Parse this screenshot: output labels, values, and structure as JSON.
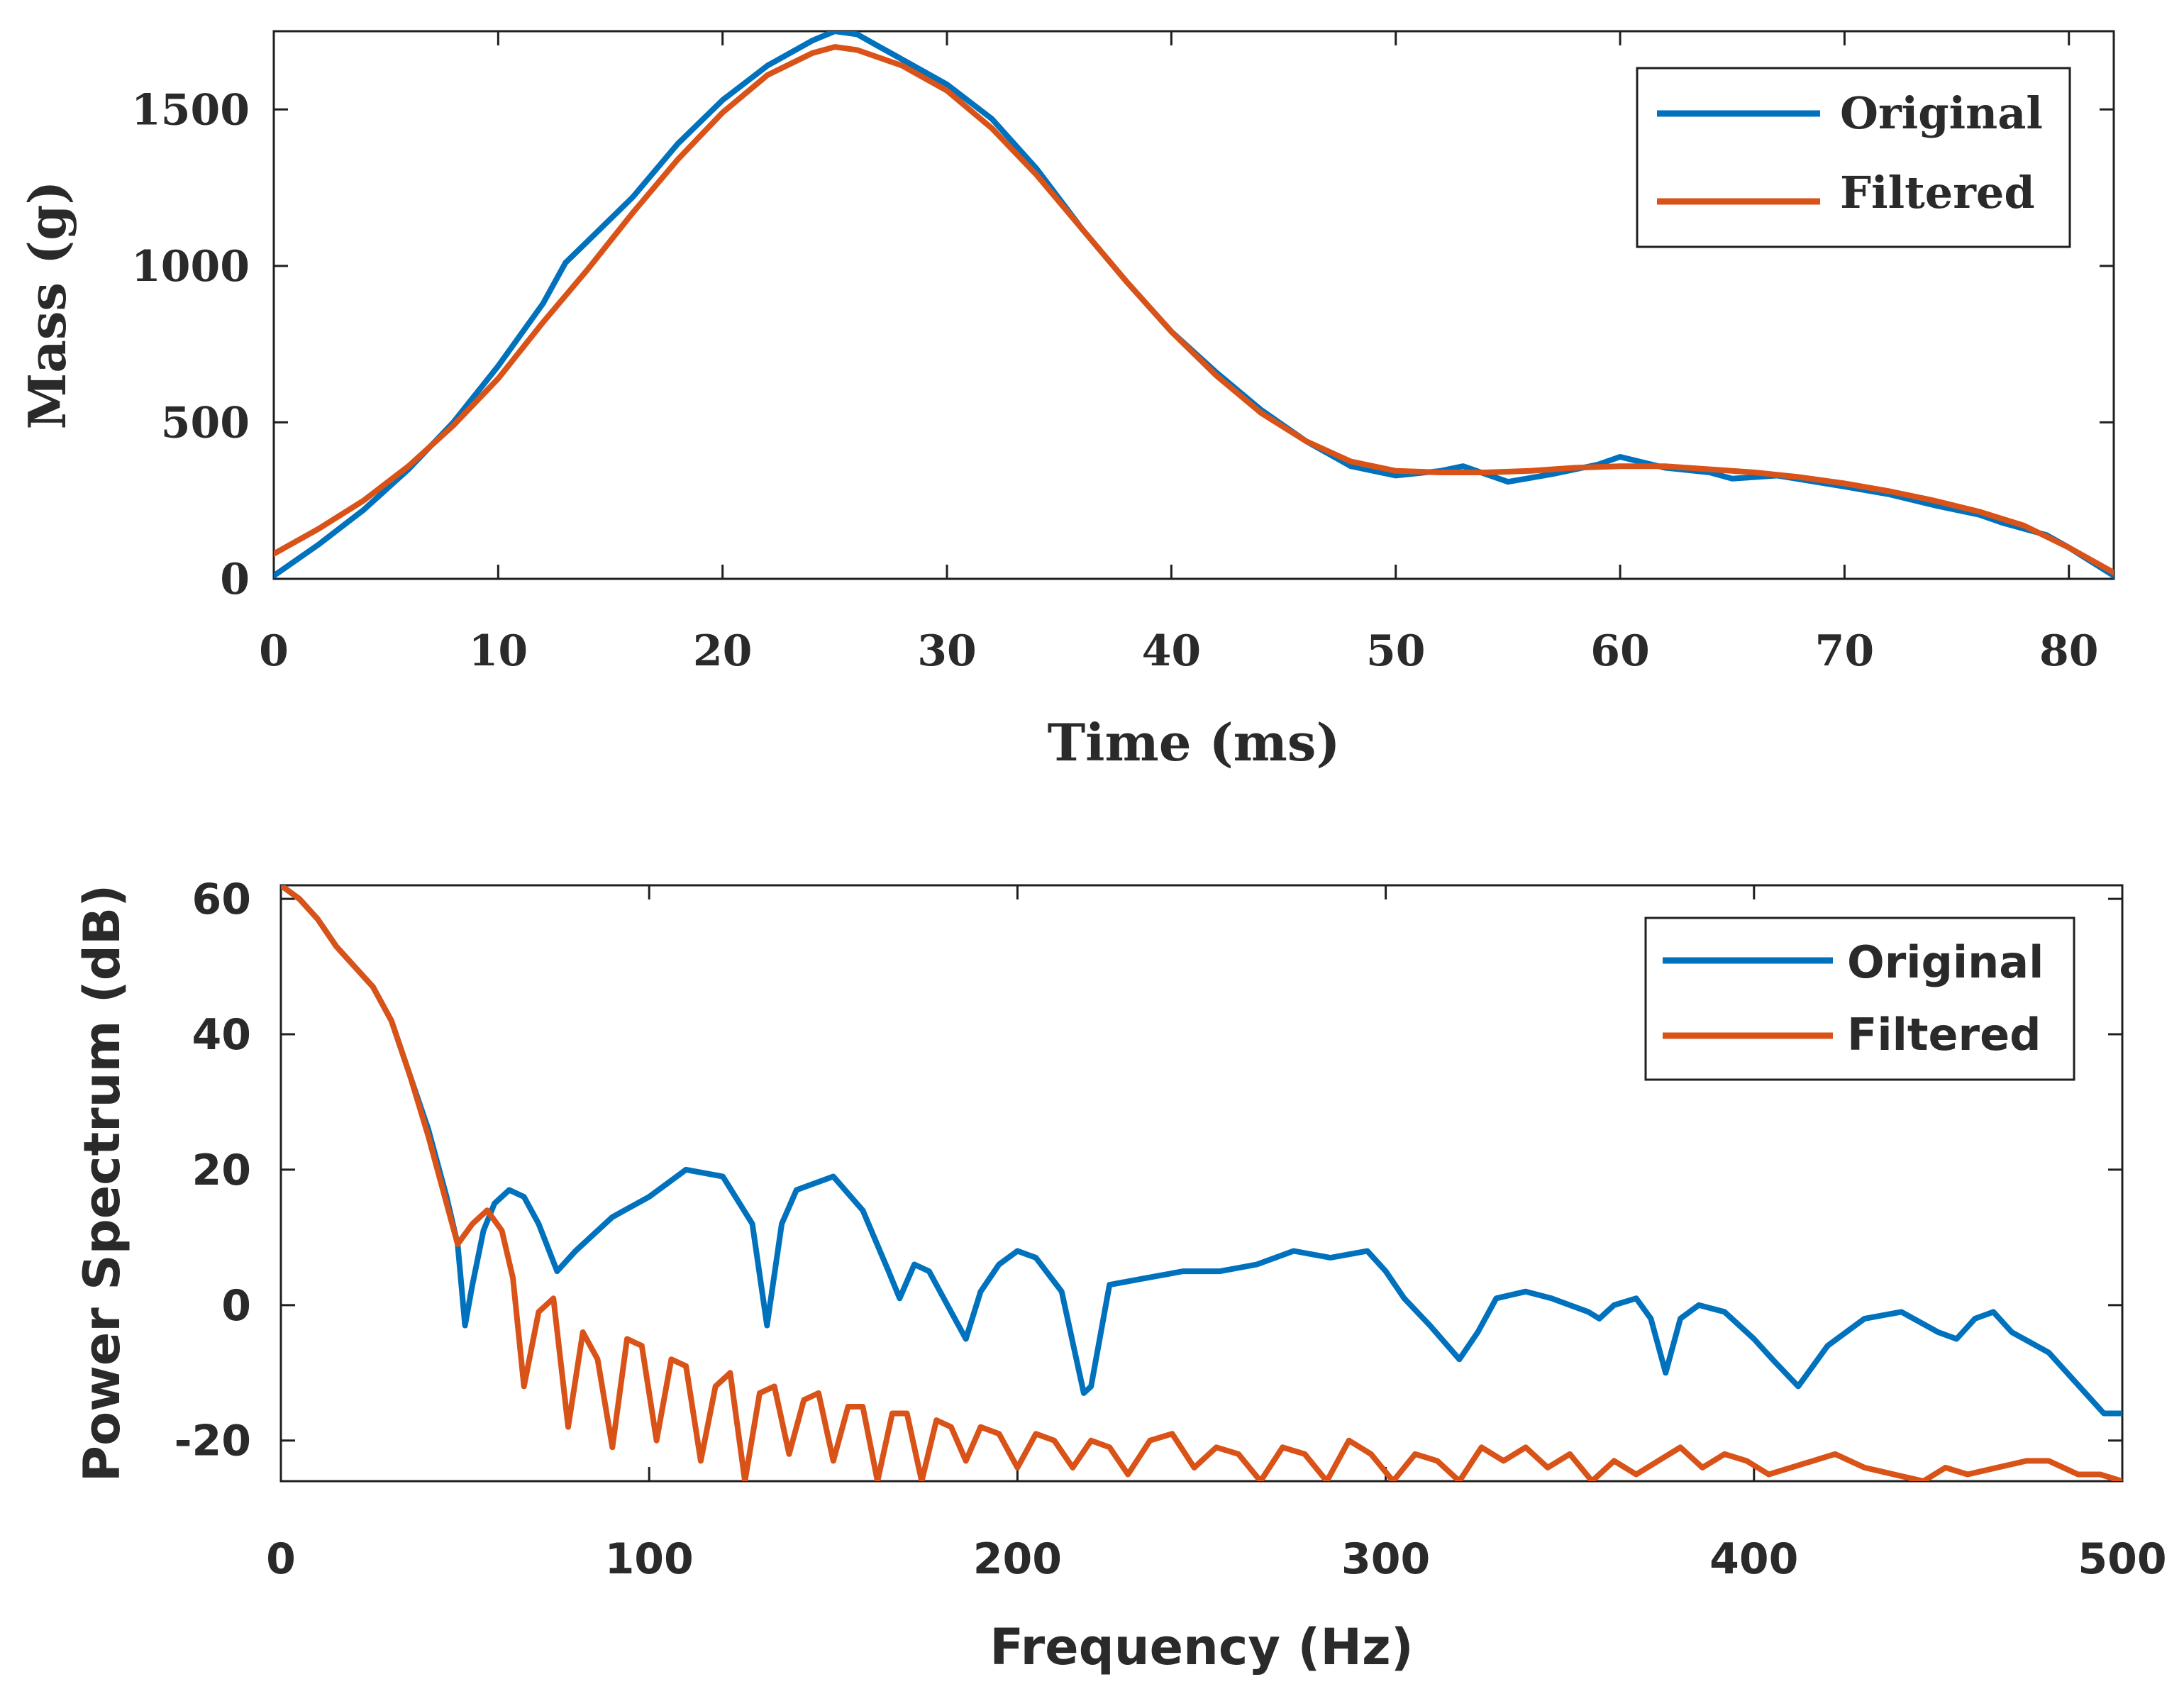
{
  "colors": {
    "original": "#0072bd",
    "filtered": "#d95319",
    "axis": "#1f1f1f"
  },
  "chart_data": [
    {
      "type": "line",
      "title": "",
      "xlabel": "Time (ms)",
      "ylabel": "Mass (g)",
      "xlim": [
        0,
        82
      ],
      "ylim": [
        0,
        1750
      ],
      "xticks": [
        0,
        10,
        20,
        30,
        40,
        50,
        60,
        70,
        80
      ],
      "yticks": [
        0,
        500,
        1000,
        1500
      ],
      "legend": {
        "position": "top-right",
        "entries": [
          "Original",
          "Filtered"
        ]
      },
      "series": [
        {
          "name": "Original",
          "color": "#0072bd",
          "x": [
            0,
            2,
            4,
            6,
            8,
            10,
            12,
            13,
            14,
            16,
            18,
            20,
            22,
            24,
            25,
            26,
            27,
            28,
            30,
            32,
            34,
            36,
            38,
            40,
            42,
            44,
            46,
            48,
            50,
            52,
            53,
            55,
            57,
            59,
            60,
            62,
            64,
            65,
            67,
            70,
            72,
            74,
            76,
            77,
            79,
            80,
            82
          ],
          "y": [
            10,
            110,
            220,
            350,
            500,
            680,
            880,
            1010,
            1080,
            1220,
            1390,
            1530,
            1640,
            1720,
            1750,
            1740,
            1700,
            1660,
            1580,
            1470,
            1310,
            1120,
            950,
            790,
            660,
            540,
            440,
            360,
            330,
            345,
            360,
            310,
            335,
            365,
            390,
            355,
            340,
            320,
            330,
            295,
            270,
            235,
            205,
            180,
            140,
            100,
            10
          ]
        },
        {
          "name": "Filtered",
          "color": "#d95319",
          "x": [
            0,
            2,
            4,
            6,
            8,
            10,
            12,
            14,
            16,
            18,
            20,
            22,
            24,
            25,
            26,
            28,
            30,
            32,
            34,
            36,
            38,
            40,
            42,
            44,
            46,
            48,
            50,
            52,
            54,
            56,
            58,
            60,
            62,
            64,
            66,
            68,
            70,
            72,
            74,
            76,
            78,
            80,
            82
          ],
          "y": [
            80,
            160,
            250,
            360,
            490,
            640,
            820,
            990,
            1170,
            1340,
            1490,
            1610,
            1680,
            1700,
            1690,
            1640,
            1560,
            1440,
            1290,
            1120,
            950,
            790,
            650,
            530,
            440,
            375,
            345,
            340,
            340,
            345,
            355,
            360,
            360,
            350,
            340,
            325,
            305,
            280,
            250,
            215,
            170,
            100,
            20
          ]
        }
      ]
    },
    {
      "type": "line",
      "title": "",
      "xlabel": "Frequency (Hz)",
      "ylabel": "Power Spectrum (dB)",
      "xlim": [
        0,
        500
      ],
      "ylim": [
        -26,
        62
      ],
      "xticks": [
        0,
        100,
        200,
        300,
        400,
        500
      ],
      "yticks": [
        60,
        40,
        20,
        0,
        -20
      ],
      "legend": {
        "position": "top-right",
        "entries": [
          "Original",
          "Filtered"
        ]
      },
      "series": [
        {
          "name": "Original",
          "color": "#0072bd",
          "x": [
            0,
            5,
            10,
            15,
            20,
            25,
            30,
            35,
            40,
            45,
            48,
            50,
            52,
            55,
            58,
            62,
            66,
            70,
            75,
            80,
            90,
            100,
            110,
            120,
            128,
            132,
            136,
            140,
            150,
            158,
            165,
            168,
            172,
            176,
            182,
            186,
            190,
            195,
            200,
            205,
            212,
            218,
            220,
            225,
            235,
            245,
            255,
            265,
            275,
            285,
            295,
            300,
            305,
            312,
            320,
            325,
            330,
            338,
            345,
            355,
            358,
            362,
            368,
            372,
            376,
            380,
            385,
            392,
            400,
            405,
            412,
            420,
            430,
            440,
            450,
            455,
            460,
            465,
            470,
            480,
            490,
            495,
            500
          ],
          "y": [
            62,
            60,
            57,
            53,
            50,
            47,
            42,
            34,
            26,
            16,
            9,
            -3,
            3,
            11,
            15,
            17,
            16,
            12,
            5,
            8,
            13,
            16,
            20,
            19,
            12,
            -3,
            12,
            17,
            19,
            14,
            5,
            1,
            6,
            5,
            -1,
            -5,
            2,
            6,
            8,
            7,
            2,
            -13,
            -12,
            3,
            4,
            5,
            5,
            6,
            8,
            7,
            8,
            5,
            1,
            -3,
            -8,
            -4,
            1,
            2,
            1,
            -1,
            -2,
            0,
            1,
            -2,
            -10,
            -2,
            0,
            -1,
            -5,
            -8,
            -12,
            -6,
            -2,
            -1,
            -4,
            -5,
            -2,
            -1,
            -4,
            -7,
            -13,
            -16,
            -16
          ]
        },
        {
          "name": "Filtered",
          "color": "#d95319",
          "x": [
            0,
            5,
            10,
            15,
            20,
            25,
            30,
            35,
            40,
            45,
            48,
            52,
            56,
            60,
            63,
            66,
            70,
            74,
            78,
            82,
            86,
            90,
            94,
            98,
            102,
            106,
            110,
            114,
            118,
            122,
            126,
            130,
            134,
            138,
            142,
            146,
            150,
            154,
            158,
            162,
            166,
            170,
            174,
            178,
            182,
            186,
            190,
            195,
            200,
            205,
            210,
            215,
            220,
            225,
            230,
            236,
            242,
            248,
            254,
            260,
            266,
            272,
            278,
            284,
            290,
            296,
            302,
            308,
            314,
            320,
            326,
            332,
            338,
            344,
            350,
            356,
            362,
            368,
            374,
            380,
            386,
            392,
            398,
            404,
            410,
            416,
            422,
            430,
            438,
            446,
            452,
            458,
            466,
            474,
            480,
            488,
            494,
            500
          ],
          "y": [
            62,
            60,
            57,
            53,
            50,
            47,
            42,
            34,
            25,
            15,
            9,
            12,
            14,
            11,
            4,
            -12,
            -1,
            1,
            -18,
            -4,
            -8,
            -21,
            -5,
            -6,
            -20,
            -8,
            -9,
            -23,
            -12,
            -10,
            -26,
            -13,
            -12,
            -22,
            -14,
            -13,
            -23,
            -15,
            -15,
            -26,
            -16,
            -16,
            -26,
            -17,
            -18,
            -23,
            -18,
            -19,
            -24,
            -19,
            -20,
            -24,
            -20,
            -21,
            -25,
            -20,
            -19,
            -24,
            -21,
            -22,
            -26,
            -21,
            -22,
            -26,
            -20,
            -22,
            -26,
            -22,
            -23,
            -26,
            -21,
            -23,
            -21,
            -24,
            -22,
            -26,
            -23,
            -25,
            -23,
            -21,
            -24,
            -22,
            -23,
            -25,
            -24,
            -23,
            -22,
            -24,
            -25,
            -26,
            -24,
            -25,
            -24,
            -23,
            -23,
            -25,
            -25,
            -26
          ]
        }
      ]
    }
  ]
}
